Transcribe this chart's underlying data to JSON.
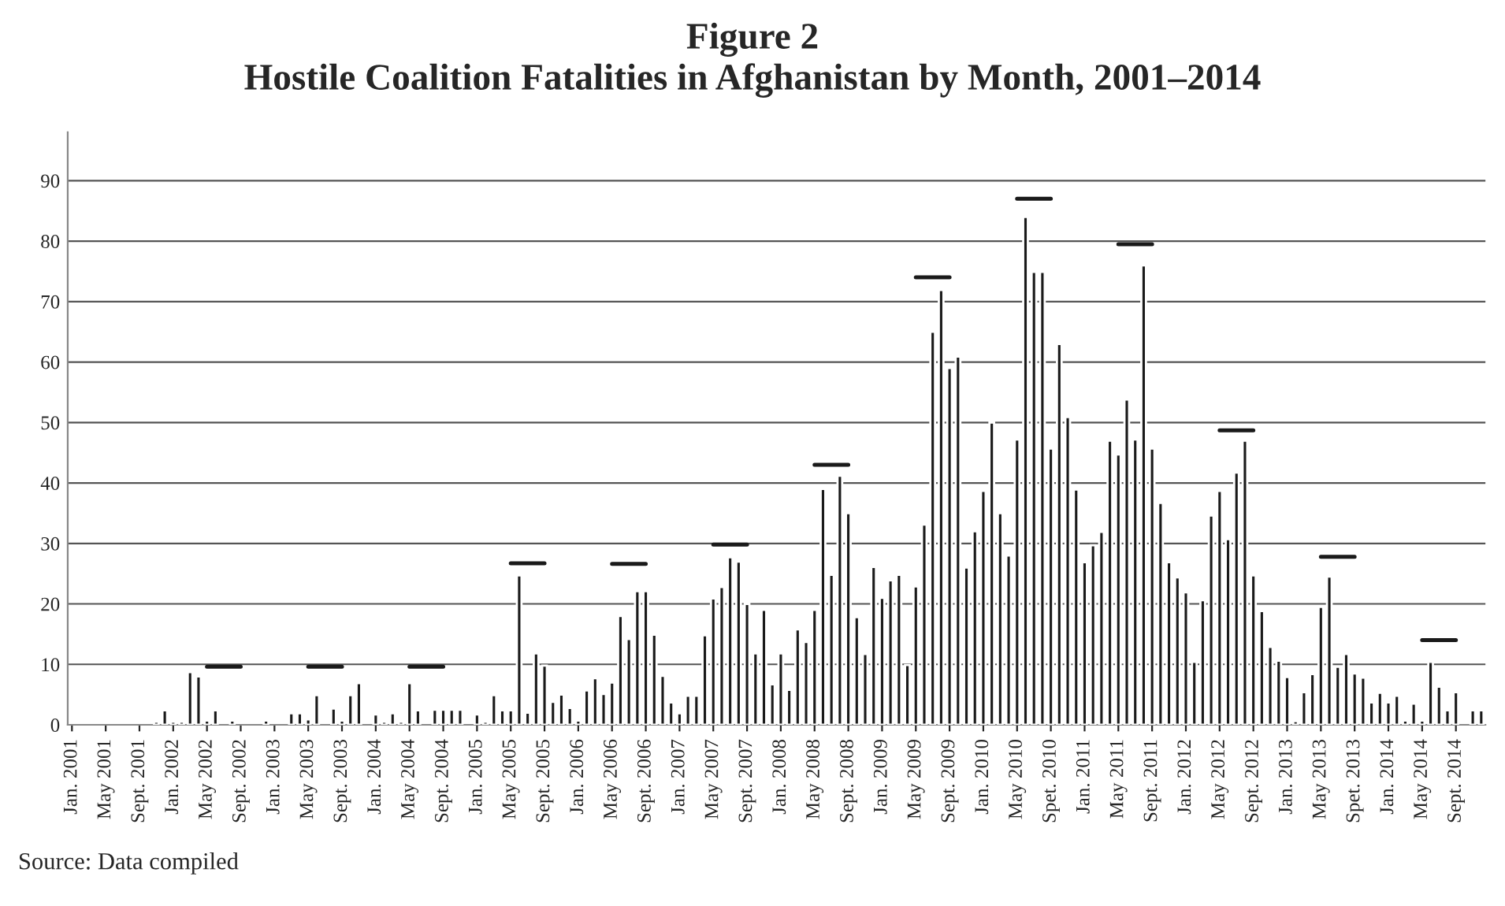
{
  "chart_data": {
    "type": "bar",
    "title": "Figure 2\nHostile Coalition Fatalities in Afghanistan by Month, 2001–2014",
    "categories": [
      "Jan. 2001",
      null,
      null,
      null,
      "May 2001",
      null,
      null,
      null,
      "Sept. 2001",
      null,
      null,
      null,
      "Jan. 2002",
      null,
      null,
      null,
      "May 2002",
      null,
      null,
      null,
      "Sept. 2002",
      null,
      null,
      null,
      "Jan. 2003",
      null,
      null,
      null,
      "May 2003",
      null,
      null,
      null,
      "Sept. 2003",
      null,
      null,
      null,
      "Jan. 2004",
      null,
      null,
      null,
      "May 2004",
      null,
      null,
      null,
      "Sept. 2004",
      null,
      null,
      null,
      "Jan. 2005",
      null,
      null,
      null,
      "May 2005",
      null,
      null,
      null,
      "Sept. 2005",
      null,
      null,
      null,
      "Jan. 2006",
      null,
      null,
      null,
      "May 2006",
      null,
      null,
      null,
      "Sept. 2006",
      null,
      null,
      null,
      "Jan. 2007",
      null,
      null,
      null,
      "May 2007",
      null,
      null,
      null,
      "Sept. 2007",
      null,
      null,
      null,
      "Jan. 2008",
      null,
      null,
      null,
      "May 2008",
      null,
      null,
      null,
      "Sept. 2008",
      null,
      null,
      null,
      "Jan. 2009",
      null,
      null,
      null,
      "May 2009",
      null,
      null,
      null,
      "Sept. 2009",
      null,
      null,
      null,
      "Jan. 2010",
      null,
      null,
      null,
      "May 2010",
      null,
      null,
      null,
      "Spet. 2010",
      null,
      null,
      null,
      "Jan. 2011",
      null,
      null,
      null,
      "May 2011",
      null,
      null,
      null,
      "Sept. 2011",
      null,
      null,
      null,
      "Jan. 2012",
      null,
      null,
      null,
      "May 2012",
      null,
      null,
      null,
      "Sept. 2012",
      null,
      null,
      null,
      "Jan. 2013",
      null,
      null,
      null,
      "May 2013",
      null,
      null,
      null,
      "Spet. 2013",
      null,
      null,
      null,
      "Jan. 2014",
      null,
      null,
      null,
      "May 2014",
      null,
      null,
      null,
      "Sept. 2014",
      null,
      null,
      null
    ],
    "series": [
      {
        "color": "#1a1a1a",
        "values": [
          null,
          null,
          null,
          null,
          null,
          null,
          null,
          null,
          null,
          null,
          0.5,
          2.4,
          0.5,
          0.5,
          8.7,
          8,
          0.7,
          2.4,
          null,
          0.7,
          null,
          null,
          null,
          0.7,
          null,
          null,
          1.9,
          1.9,
          0.9,
          4.9,
          null,
          2.7,
          0.7,
          4.9,
          6.9,
          null,
          1.7,
          0.5,
          1.9,
          0.5,
          6.9,
          2.4,
          null,
          2.5,
          2.5,
          2.5,
          2.5,
          null,
          1.7,
          0.5,
          4.9,
          2.4,
          2.4,
          24.7,
          2,
          11.8,
          9.8,
          3.8,
          5,
          2.8,
          0.7,
          5.7,
          7.7,
          5.1,
          7,
          18,
          14.2,
          22.1,
          22.1,
          14.9,
          8.1,
          3.7,
          1.9,
          4.8,
          4.8,
          14.8,
          20.9,
          22.8,
          27.7,
          27,
          20,
          11.8,
          19,
          6.7,
          11.8,
          5.8,
          15.8,
          13.7,
          19,
          39,
          24.8,
          41.2,
          35,
          17.8,
          11.7,
          26.1,
          21,
          23.9,
          24.8,
          9.9,
          22.9,
          33.1,
          65,
          71.9,
          59,
          60.9,
          26,
          32,
          38.7,
          50,
          35,
          28,
          47.2,
          84,
          74.9,
          74.9,
          45.7,
          63,
          50.9,
          38.9,
          26.9,
          29.7,
          31.9,
          47,
          44.7,
          53.8,
          47.2,
          76,
          45.7,
          36.7,
          26.9,
          24.4,
          21.9,
          10.4,
          20.6,
          34.6,
          38.7,
          30.7,
          41.7,
          47,
          24.7,
          18.8,
          12.9,
          10.6,
          7.9,
          0.6,
          5.4,
          8.4,
          19.5,
          24.5,
          9.6,
          11.7,
          8.5,
          7.8,
          3.7,
          5.3,
          3.7,
          4.8,
          0.7,
          3.5,
          0.7,
          10.4,
          6.3,
          2.4,
          5.4,
          null,
          2.4,
          2.4
        ]
      },
      {
        "type": "line",
        "color": "#1a1a1a",
        "values": [
          null,
          null,
          null,
          null,
          null,
          null,
          null,
          null,
          null,
          null,
          null,
          null,
          null,
          null,
          null,
          null,
          9.6,
          9.6,
          9.6,
          9.6,
          9.6,
          null,
          null,
          null,
          null,
          null,
          null,
          null,
          9.6,
          9.6,
          9.6,
          9.6,
          9.6,
          null,
          null,
          null,
          null,
          null,
          null,
          null,
          9.6,
          9.6,
          9.6,
          9.6,
          9.6,
          null,
          null,
          null,
          null,
          null,
          null,
          null,
          26.7,
          26.7,
          26.7,
          26.7,
          26.7,
          null,
          null,
          null,
          null,
          null,
          null,
          null,
          26.6,
          26.6,
          26.6,
          26.6,
          26.6,
          null,
          null,
          null,
          null,
          null,
          null,
          null,
          29.8,
          29.8,
          29.8,
          29.8,
          29.8,
          null,
          null,
          null,
          null,
          null,
          null,
          null,
          43,
          43,
          43,
          43,
          43,
          null,
          null,
          null,
          null,
          null,
          null,
          null,
          74,
          74,
          74,
          74,
          74,
          null,
          null,
          null,
          null,
          null,
          null,
          null,
          87,
          87,
          87,
          87,
          87,
          null,
          null,
          null,
          null,
          null,
          null,
          null,
          79.5,
          79.5,
          79.5,
          79.5,
          79.5,
          null,
          null,
          null,
          null,
          null,
          null,
          null,
          48.7,
          48.7,
          48.7,
          48.7,
          48.7,
          null,
          null,
          null,
          null,
          null,
          null,
          null,
          27.8,
          27.8,
          27.8,
          27.8,
          27.8,
          null,
          null,
          null,
          null,
          null,
          null,
          null,
          14,
          14,
          14,
          14,
          14,
          null,
          null,
          null
        ]
      }
    ],
    "ylim": [
      0,
      98
    ],
    "yticks": [
      0,
      10,
      20,
      30,
      40,
      50,
      60,
      70,
      80,
      90
    ],
    "grid": "y",
    "line_style": "solid",
    "marker": "none",
    "annotations": [
      "Source: Data compiled"
    ]
  }
}
